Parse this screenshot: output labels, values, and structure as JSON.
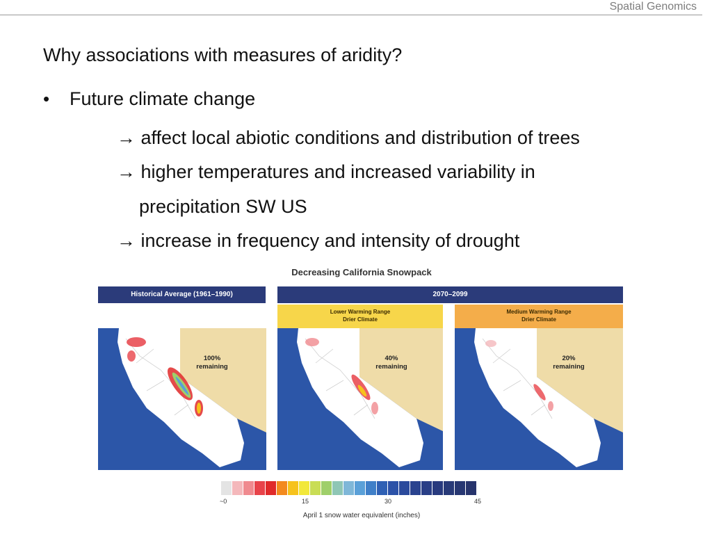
{
  "header": {
    "text": "Spatial Genomics"
  },
  "slide": {
    "title": "Why associations with measures of aridity?",
    "bullet": "Future climate change",
    "sub1": "→ affect local abiotic conditions and distribution of trees",
    "sub2a": "→ higher temperatures and increased variability in",
    "sub2b": "precipitation SW US",
    "sub3": "→ increase in frequency and intensity of drought"
  },
  "figure": {
    "title": "Decreasing California Snowpack",
    "historical_label": "Historical Average (1961–1990)",
    "future_label": "2070–2099",
    "scenario_low": {
      "line1": "Lower Warming Range",
      "line2": "Drier Climate"
    },
    "scenario_med": {
      "line1": "Medium Warming Range",
      "line2": "Drier Climate"
    },
    "panels": [
      {
        "pct": "100%",
        "label": "remaining"
      },
      {
        "pct": "40%",
        "label": "remaining"
      },
      {
        "pct": "20%",
        "label": "remaining"
      }
    ],
    "legend": {
      "ticks": [
        "~0",
        "15",
        "30",
        "45"
      ],
      "caption": "April 1 snow water equivalent (inches)",
      "colors": [
        "#e4e4e4",
        "#f4b8bb",
        "#f08a8f",
        "#e8434a",
        "#e02a2a",
        "#f38a1e",
        "#f6c21c",
        "#f2e83a",
        "#c9dd55",
        "#9fcf6a",
        "#8fc6b5",
        "#7fb7d8",
        "#5aa0d8",
        "#3f7fc8",
        "#2f60b4",
        "#2c52a8",
        "#2b4a9c",
        "#2a438f",
        "#293e86",
        "#283a7e",
        "#283a78",
        "#273772",
        "#27346c"
      ]
    },
    "colors": {
      "ocean": "#2c56a8",
      "land": "#ffffff",
      "nevada": "#efdca8",
      "band": "#2b3b7a",
      "scen_low": "#f7d64a",
      "scen_med": "#f4ad4a"
    }
  }
}
